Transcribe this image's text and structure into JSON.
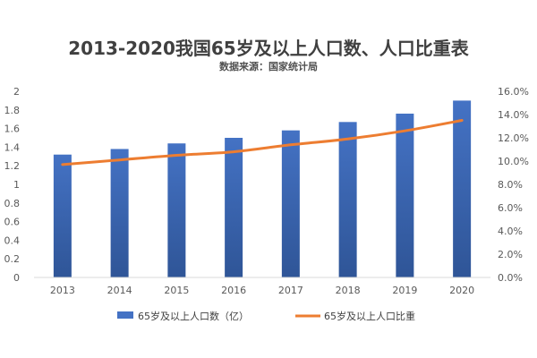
{
  "chart_data": {
    "type": "bar",
    "title": "2013-2020我国65岁及以上人口数、人口比重表",
    "subtitle": "数据来源：国家统计局",
    "categories": [
      "2013",
      "2014",
      "2015",
      "2016",
      "2017",
      "2018",
      "2019",
      "2020"
    ],
    "series": [
      {
        "name": "65岁及以上人口数（亿）",
        "type": "bar",
        "axis": "left",
        "color": "#4472C4",
        "values": [
          1.32,
          1.38,
          1.44,
          1.5,
          1.58,
          1.67,
          1.76,
          1.9
        ]
      },
      {
        "name": "65岁及以上人口比重",
        "type": "line",
        "axis": "right",
        "color": "#ED7D31",
        "values": [
          9.7,
          10.1,
          10.5,
          10.8,
          11.4,
          11.9,
          12.6,
          13.5
        ]
      }
    ],
    "y_left": {
      "min": 0,
      "max": 2,
      "ticks": [
        "0",
        "0.2",
        "0.4",
        "0.6",
        "0.8",
        "1",
        "1.2",
        "1.4",
        "1.6",
        "1.8",
        "2"
      ]
    },
    "y_right": {
      "min": 0,
      "max": 16,
      "ticks": [
        "0.0%",
        "2.0%",
        "4.0%",
        "6.0%",
        "8.0%",
        "10.0%",
        "12.0%",
        "14.0%",
        "16.0%"
      ]
    },
    "legend_position": "bottom",
    "grid": false
  }
}
